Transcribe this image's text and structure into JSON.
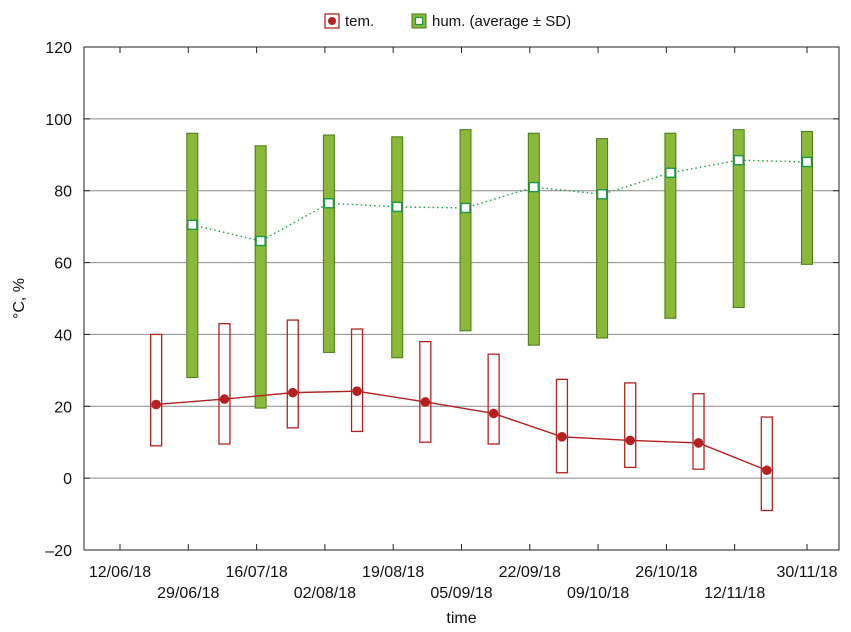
{
  "chart_data": {
    "type": "line",
    "xlabel": "time",
    "ylabel": "°C, %",
    "ylim": [
      -20,
      120
    ],
    "y_ticks": [
      -20,
      0,
      20,
      40,
      60,
      80,
      100,
      120
    ],
    "y_tick_labels": [
      "–20",
      "0",
      "20",
      "40",
      "60",
      "80",
      "100",
      "120"
    ],
    "x_ticks": [
      "12/06/18",
      "29/06/18",
      "16/07/18",
      "02/08/18",
      "19/08/18",
      "05/09/18",
      "22/09/18",
      "09/10/18",
      "26/10/18",
      "12/11/18",
      "30/11/18"
    ],
    "grid": "horizontal",
    "legend_position": "top-center",
    "series": [
      {
        "name": "tem.",
        "color": "#b22222",
        "marker": "filled-circle",
        "line": "solid",
        "points": [
          {
            "x": "21/06/18",
            "mean": 20.5,
            "low": 9,
            "high": 40
          },
          {
            "x": "08/07/18",
            "mean": 22,
            "low": 9.5,
            "high": 43
          },
          {
            "x": "25/07/18",
            "mean": 23.8,
            "low": 14,
            "high": 44
          },
          {
            "x": "10/08/18",
            "mean": 24.2,
            "low": 13,
            "high": 41.5
          },
          {
            "x": "27/08/18",
            "mean": 21.2,
            "low": 10,
            "high": 38
          },
          {
            "x": "13/09/18",
            "mean": 18,
            "low": 9.5,
            "high": 34.5
          },
          {
            "x": "30/09/18",
            "mean": 11.5,
            "low": 1.5,
            "high": 27.5
          },
          {
            "x": "17/10/18",
            "mean": 10.5,
            "low": 3,
            "high": 26.5
          },
          {
            "x": "03/11/18",
            "mean": 9.8,
            "low": 2.5,
            "high": 23.5
          },
          {
            "x": "20/11/18",
            "mean": 2.2,
            "low": -9,
            "high": 17
          }
        ]
      },
      {
        "name": "hum. (average ± SD)",
        "color": "#8ab83a",
        "marker": "open-square",
        "line": "dotted",
        "points": [
          {
            "x": "30/06/18",
            "mean": 70.5,
            "low": 28,
            "high": 96
          },
          {
            "x": "17/07/18",
            "mean": 66,
            "low": 19.5,
            "high": 92.5
          },
          {
            "x": "03/08/18",
            "mean": 76.5,
            "low": 35,
            "high": 95.5
          },
          {
            "x": "20/08/18",
            "mean": 75.5,
            "low": 33.5,
            "high": 95
          },
          {
            "x": "06/09/18",
            "mean": 75.2,
            "low": 41,
            "high": 97
          },
          {
            "x": "23/09/18",
            "mean": 81,
            "low": 37,
            "high": 96
          },
          {
            "x": "10/10/18",
            "mean": 79,
            "low": 39,
            "high": 94.5
          },
          {
            "x": "27/10/18",
            "mean": 85,
            "low": 44.5,
            "high": 96
          },
          {
            "x": "13/11/18",
            "mean": 88.5,
            "low": 47.5,
            "high": 97
          },
          {
            "x": "30/11/18",
            "mean": 88,
            "low": 59.5,
            "high": 96.5
          }
        ]
      }
    ]
  }
}
